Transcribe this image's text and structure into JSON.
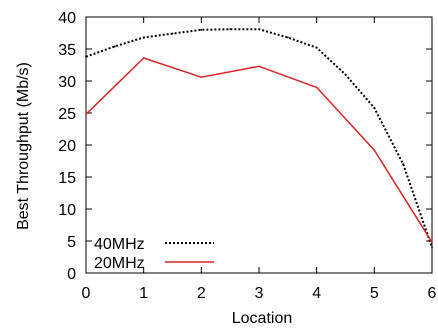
{
  "chart_data": {
    "type": "line",
    "title": "",
    "xlabel": "Location",
    "ylabel": "Best Throughput (Mb/s)",
    "xlim": [
      0,
      6
    ],
    "ylim": [
      0,
      40
    ],
    "x_ticks": [
      0,
      1,
      2,
      3,
      4,
      5,
      6
    ],
    "y_ticks": [
      0,
      5,
      10,
      15,
      20,
      25,
      30,
      35,
      40
    ],
    "grid": false,
    "legend_position": "bottom-left",
    "series": [
      {
        "name": "40MHz",
        "style": "dotted",
        "color": "#000000",
        "x": [
          0,
          0.5,
          1,
          1.5,
          2,
          2.5,
          3,
          3.5,
          4,
          4.5,
          5,
          5.5,
          6
        ],
        "y": [
          33.8,
          35.4,
          36.8,
          37.4,
          38.0,
          38.1,
          38.1,
          36.8,
          35.2,
          31.0,
          25.8,
          17.0,
          4.0
        ]
      },
      {
        "name": "20MHz",
        "style": "solid",
        "color": "#d62728",
        "x": [
          0,
          1,
          2,
          3,
          4,
          5,
          6
        ],
        "y": [
          24.8,
          33.6,
          30.6,
          32.3,
          29.0,
          19.2,
          4.8
        ]
      }
    ]
  }
}
